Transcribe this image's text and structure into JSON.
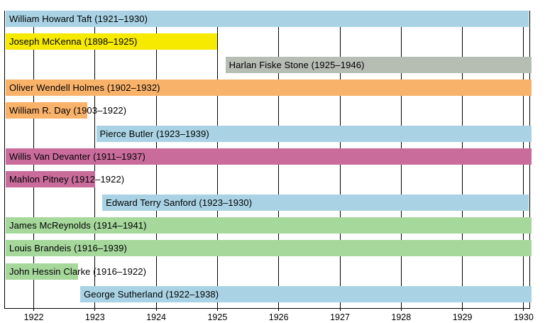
{
  "chart_data": {
    "type": "timeline",
    "description": "Gantt-style timeline of Supreme Court justices' tenures",
    "x_axis": {
      "tick_years": [
        1922,
        1923,
        1924,
        1925,
        1926,
        1927,
        1928,
        1929,
        1930
      ],
      "range_start": 1921.52,
      "range_end": 1930.1,
      "grid": true
    },
    "colors": {
      "lightblue": "#a9d3e4",
      "yellow": "#f6ea00",
      "gray": "#b6bdb3",
      "orange": "#f9b26a",
      "magenta": "#c96c9c",
      "green": "#a6d89c",
      "grid": "#000000",
      "text": "#000000"
    },
    "bars": [
      {
        "label": "William Howard Taft (1921–1930)",
        "name": "William Howard Taft",
        "start_year": 1921.5,
        "end_year": 1930.1,
        "continues_past_chart": false,
        "color": "lightblue"
      },
      {
        "label": "Joseph McKenna (1898–1925)",
        "name": "Joseph McKenna",
        "start_year": 1898,
        "end_year": 1925.0,
        "continues_past_chart": false,
        "color": "yellow"
      },
      {
        "label": "Harlan Fiske Stone (1925–1946)",
        "name": "Harlan Fiske Stone",
        "start_year": 1925.13,
        "end_year": 1946,
        "continues_past_chart": true,
        "color": "gray"
      },
      {
        "label": "Oliver Wendell Holmes (1902–1932)",
        "name": "Oliver Wendell Holmes",
        "start_year": 1902,
        "end_year": 1932,
        "continues_past_chart": true,
        "color": "orange"
      },
      {
        "label": "William R. Day (1903–1922)",
        "name": "William R. Day",
        "start_year": 1903,
        "end_year": 1922.87,
        "continues_past_chart": false,
        "color": "orange"
      },
      {
        "label": "Pierce Butler (1923–1939)",
        "name": "Pierce Butler",
        "start_year": 1923.02,
        "end_year": 1939,
        "continues_past_chart": true,
        "color": "lightblue"
      },
      {
        "label": "Willis Van Devanter (1911–1937)",
        "name": "Willis Van Devanter",
        "start_year": 1911,
        "end_year": 1937,
        "continues_past_chart": true,
        "color": "magenta"
      },
      {
        "label": "Mahlon Pitney (1912–1922)",
        "name": "Mahlon Pitney",
        "start_year": 1912,
        "end_year": 1923.0,
        "continues_past_chart": false,
        "color": "magenta"
      },
      {
        "label": "Edward Terry Sanford (1923–1930)",
        "name": "Edward Terry Sanford",
        "start_year": 1923.12,
        "end_year": 1930.18,
        "continues_past_chart": false,
        "color": "lightblue"
      },
      {
        "label": "James McReynolds (1914–1941)",
        "name": "James McReynolds",
        "start_year": 1914,
        "end_year": 1941,
        "continues_past_chart": true,
        "color": "green"
      },
      {
        "label": "Louis Brandeis (1916–1939)",
        "name": "Louis Brandeis",
        "start_year": 1916,
        "end_year": 1939,
        "continues_past_chart": true,
        "color": "green"
      },
      {
        "label": "John Hessin Clarke (1916–1922)",
        "name": "John Hessin Clarke",
        "start_year": 1916,
        "end_year": 1922.73,
        "continues_past_chart": false,
        "color": "green"
      },
      {
        "label": "George Sutherland (1922–1938)",
        "name": "George Sutherland",
        "start_year": 1922.76,
        "end_year": 1938,
        "continues_past_chart": true,
        "color": "lightblue"
      }
    ]
  }
}
